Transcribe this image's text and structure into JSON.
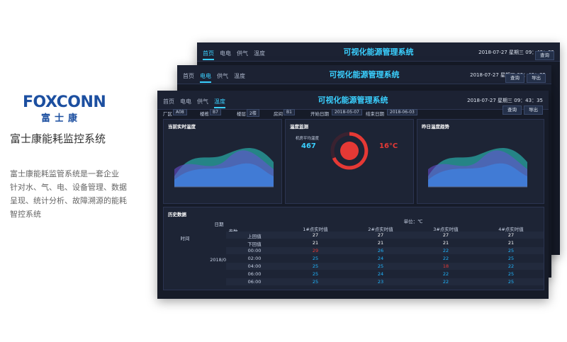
{
  "brand": {
    "logo": "FOXCONN",
    "logo_sub": "富士康",
    "title": "富士康能耗监控系统",
    "description": [
      "富士康能耗监管系统是一套企业",
      "针对水、气、电、设备管理、数据",
      "呈现、统计分析、故障溯源的能耗",
      "智控系统"
    ]
  },
  "screens": [
    {
      "tabs": [
        "首页",
        "电电",
        "供气",
        "温度"
      ],
      "active": 0,
      "title": "可视化能源管理系统",
      "datetime": "2018-07-27 星期三 09：43：35",
      "buttons": [
        "查询"
      ]
    },
    {
      "tabs": [
        "首页",
        "电电",
        "供气",
        "温度"
      ],
      "active": 1,
      "title": "可视化能源管理系统",
      "datetime": "2018-07-27 星期三 09：43：35",
      "buttons": [
        "查询",
        "导出"
      ]
    },
    {
      "tabs": [
        "首页",
        "电电",
        "供气",
        "温度"
      ],
      "active": 3,
      "title": "可视化能源管理系统",
      "datetime": "2018-07-27 星期三 09：43：35",
      "buttons": [
        "查询",
        "导出"
      ],
      "filters": [
        {
          "label": "厂区",
          "value": "A08"
        },
        {
          "label": "楼栋",
          "value": "B7"
        },
        {
          "label": "楼层",
          "value": "2楼"
        },
        {
          "label": "房间",
          "value": "B1"
        },
        {
          "label": "开始日期",
          "value": "2018-05-07"
        },
        {
          "label": "结束日期",
          "value": "2018-06-03"
        }
      ]
    }
  ],
  "panels": {
    "left": "当前实时温度",
    "middle": "温度监测",
    "right": "昨日温度趋势",
    "history": "历史数据"
  },
  "gauge": {
    "caption": "机房平均温度",
    "value": "467",
    "temp": "16°C"
  },
  "table": {
    "unit": "单位：℃",
    "corner": [
      "日期",
      "参数",
      "时间"
    ],
    "columns": [
      "1#点实时值",
      "2#点实时值",
      "3#点实时值",
      "4#点实时值"
    ],
    "date": "2018/05/28",
    "rows": [
      {
        "label": "上回值",
        "values": [
          27,
          27,
          27,
          27
        ],
        "colors": [
          "#ffffff",
          "#ffffff",
          "#ffffff",
          "#ffffff"
        ]
      },
      {
        "label": "下回值",
        "values": [
          21,
          21,
          21,
          21
        ],
        "colors": [
          "#ffffff",
          "#ffffff",
          "#ffffff",
          "#ffffff"
        ]
      },
      {
        "label": "00:00",
        "values": [
          29,
          26,
          22,
          25
        ],
        "colors": [
          "#e53935",
          "#1fb6ff",
          "#1fb6ff",
          "#1fb6ff"
        ]
      },
      {
        "label": "02:00",
        "values": [
          25,
          24,
          22,
          25
        ],
        "colors": [
          "#1fb6ff",
          "#1fb6ff",
          "#1fb6ff",
          "#1fb6ff"
        ]
      },
      {
        "label": "04:00",
        "values": [
          25,
          25,
          18,
          22
        ],
        "colors": [
          "#1fb6ff",
          "#1fb6ff",
          "#e53935",
          "#1fb6ff"
        ]
      },
      {
        "label": "06:00",
        "values": [
          25,
          24,
          22,
          25
        ],
        "colors": [
          "#1fb6ff",
          "#1fb6ff",
          "#1fb6ff",
          "#1fb6ff"
        ]
      },
      {
        "label": "06:00",
        "values": [
          25,
          23,
          22,
          25
        ],
        "colors": [
          "#1fb6ff",
          "#1fb6ff",
          "#1fb6ff",
          "#1fb6ff"
        ]
      }
    ]
  }
}
